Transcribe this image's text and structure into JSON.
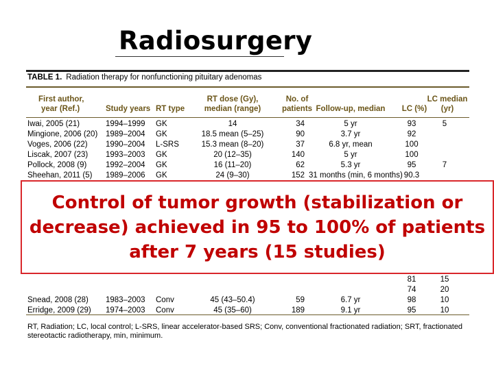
{
  "slide": {
    "title": "Radiosurgery"
  },
  "table": {
    "label": "TABLE 1.",
    "caption": "Radiation therapy for nonfunctioning pituitary adenomas",
    "headers": {
      "author_l1": "First author,",
      "author_l2": "year (Ref.)",
      "years": "Study years",
      "type": "RT type",
      "dose_l1": "RT dose (Gy),",
      "dose_l2": "median (range)",
      "n_l1": "No. of",
      "n_l2": "patients",
      "followup": "Follow-up, median",
      "lc": "LC (%)",
      "lcmed_l1": "LC median",
      "lcmed_l2": "(yr)"
    },
    "rows": [
      {
        "author": "Iwai, 2005 (21)",
        "years": "1994–1999",
        "type": "GK",
        "dose": "14",
        "n": "34",
        "followup": "5 yr",
        "lc": "93",
        "med": "5"
      },
      {
        "author": "Mingione, 2006 (20)",
        "years": "1989–2004",
        "type": "GK",
        "dose": "18.5 mean (5–25)",
        "n": "90",
        "followup": "3.7 yr",
        "lc": "92",
        "med": ""
      },
      {
        "author": "Voges, 2006 (22)",
        "years": "1990–2004",
        "type": "L-SRS",
        "dose": "15.3 mean (8–20)",
        "n": "37",
        "followup": "6.8 yr, mean",
        "lc": "100",
        "med": ""
      },
      {
        "author": "Liscak, 2007 (23)",
        "years": "1993–2003",
        "type": "GK",
        "dose": "20 (12–35)",
        "n": "140",
        "followup": "5 yr",
        "lc": "100",
        "med": ""
      },
      {
        "author": "Pollock, 2008 (9)",
        "years": "1992–2004",
        "type": "GK",
        "dose": "16 (11–20)",
        "n": "62",
        "followup": "5.3 yr",
        "lc": "95",
        "med": "7"
      },
      {
        "author": "Sheehan, 2011 (5)",
        "years": "1989–2006",
        "type": "GK",
        "dose": "24 (9–30)",
        "n": "152",
        "followup": "31 months (min, 6 months)",
        "lc": "90.3",
        "med": ""
      }
    ],
    "partial_rows": [
      {
        "lc": "81",
        "med": "15"
      },
      {
        "lc": "74",
        "med": "20"
      }
    ],
    "rows_bottom": [
      {
        "author": "Snead, 2008 (28)",
        "years": "1983–2003",
        "type": "Conv",
        "dose": "45 (43–50.4)",
        "n": "59",
        "followup": "6.7 yr",
        "lc": "98",
        "med": "10"
      },
      {
        "author": "Erridge, 2009 (29)",
        "years": "1974–2003",
        "type": "Conv",
        "dose": "45 (35–60)",
        "n": "189",
        "followup": "9.1 yr",
        "lc": "95",
        "med": "10"
      }
    ],
    "footnote": "RT, Radiation; LC, local control; L-SRS, linear accelerator-based SRS; Conv, conventional fractionated radiation; SRT, fractionated stereotactic radiotherapy, min, minimum."
  },
  "overlay": {
    "line1": "Control of tumor growth (stabilization or",
    "line2": "decrease)  achieved in 95 to 100% of patients",
    "line3": "after 7 years (15 studies)",
    "text_color": "#c00000",
    "border_color": "#d9262a"
  },
  "colors": {
    "header_text": "#6b5518",
    "rule": "#6a5a2a"
  }
}
